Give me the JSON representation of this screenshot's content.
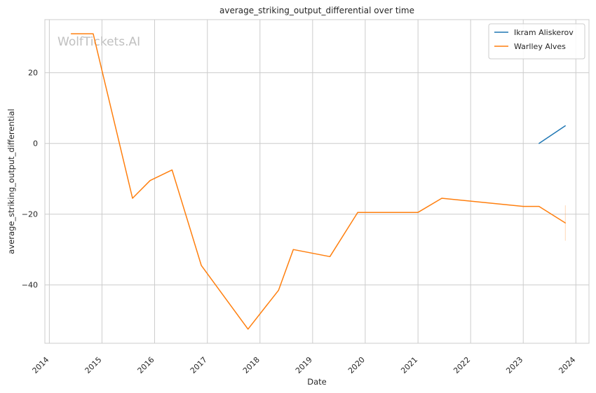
{
  "chart_data": {
    "type": "line",
    "title": "average_striking_output_differential over time",
    "xlabel": "Date",
    "ylabel": "average_striking_output_differential",
    "x_type": "date",
    "xlim": [
      "2013-12-01",
      "2024-04-01"
    ],
    "ylim": [
      -56.5,
      35
    ],
    "x_ticks": [
      "2014",
      "2015",
      "2016",
      "2017",
      "2018",
      "2019",
      "2020",
      "2021",
      "2022",
      "2023",
      "2024"
    ],
    "y_ticks": [
      20,
      0,
      -20,
      -40
    ],
    "grid": true,
    "legend_position": "top-right",
    "watermark": "WolfTickets.AI",
    "series": [
      {
        "name": "Ikram Aliskerov",
        "color": "#1f77b4",
        "points": [
          {
            "x": "2023-04-20",
            "y": 0.0
          },
          {
            "x": "2023-10-20",
            "y": 5.0
          }
        ]
      },
      {
        "name": "Warlley Alves",
        "color": "#ff7f0e",
        "points": [
          {
            "x": "2014-06-01",
            "y": 31.0
          },
          {
            "x": "2014-11-01",
            "y": 31.0
          },
          {
            "x": "2015-08-01",
            "y": -15.5
          },
          {
            "x": "2015-12-01",
            "y": -10.5
          },
          {
            "x": "2016-05-01",
            "y": -7.5
          },
          {
            "x": "2016-11-20",
            "y": -34.5
          },
          {
            "x": "2017-10-10",
            "y": -52.5
          },
          {
            "x": "2018-05-10",
            "y": -41.5
          },
          {
            "x": "2018-08-20",
            "y": -30.0
          },
          {
            "x": "2019-05-01",
            "y": -32.0
          },
          {
            "x": "2019-11-10",
            "y": -19.5
          },
          {
            "x": "2021-01-01",
            "y": -19.5
          },
          {
            "x": "2021-06-15",
            "y": -15.5
          },
          {
            "x": "2023-01-01",
            "y": -17.8
          },
          {
            "x": "2023-04-20",
            "y": -17.8
          },
          {
            "x": "2023-10-20",
            "y": -22.5
          }
        ],
        "error_bar": {
          "x": "2023-10-20",
          "low": -27.5,
          "high": -17.5
        }
      }
    ]
  }
}
